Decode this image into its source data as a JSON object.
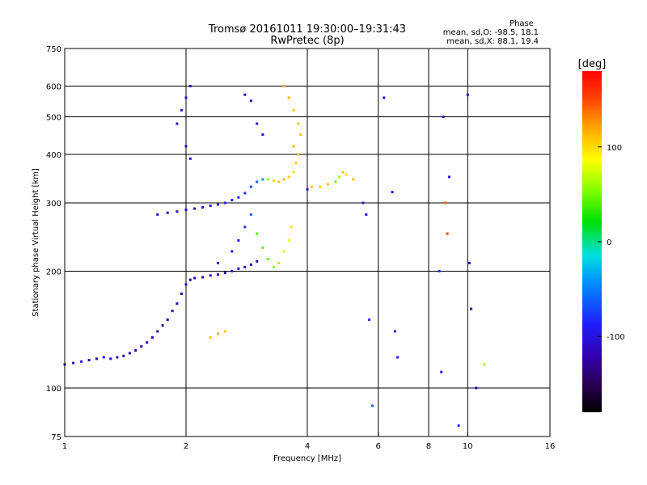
{
  "chart_data": {
    "type": "scatter",
    "title": "Tromsø 20161011 19:30:00–19:31:43",
    "subtitle": "RwPretec (8p)",
    "xlabel": "Frequency [MHz]",
    "ylabel": "Stationary phase Virtual Height [km]",
    "x_scale": "log2",
    "y_scale": "log",
    "xlim": [
      1,
      16
    ],
    "ylim": [
      75,
      750
    ],
    "x_ticks": [
      1,
      2,
      4,
      6,
      8,
      10,
      16
    ],
    "x_tick_labels": [
      "1",
      "2",
      "4",
      "6",
      "8",
      "10",
      "16"
    ],
    "y_ticks": [
      75,
      100,
      200,
      300,
      400,
      500,
      600,
      750
    ],
    "y_tick_labels": [
      "75",
      "100",
      "200",
      "300",
      "400",
      "500",
      "600",
      "750"
    ],
    "x_gridlines": [
      2,
      4,
      6,
      8,
      10
    ],
    "y_gridlines": [
      100,
      200,
      300,
      400,
      500,
      600
    ],
    "stats": {
      "heading": "Phase",
      "line_o": "mean, sd,O: -98.5, 18.1",
      "line_x": "mean, sd,X:  88.1, 19.4"
    },
    "colorbar": {
      "label": "[deg]",
      "range": [
        -180,
        180
      ],
      "ticks": [
        100,
        0,
        -100
      ],
      "tick_labels": [
        "100",
        "0",
        "-100"
      ]
    },
    "series": [
      {
        "points": [
          [
            1.0,
            115,
            -110
          ],
          [
            1.05,
            116,
            -110
          ],
          [
            1.1,
            117,
            -112
          ],
          [
            1.15,
            118,
            -105
          ],
          [
            1.2,
            119,
            -110
          ],
          [
            1.25,
            120,
            -108
          ],
          [
            1.3,
            119,
            -115
          ],
          [
            1.35,
            120,
            -112
          ],
          [
            1.4,
            121,
            -118
          ],
          [
            1.45,
            123,
            -115
          ],
          [
            1.5,
            125,
            -120
          ],
          [
            1.55,
            128,
            -118
          ],
          [
            1.6,
            131,
            -122
          ],
          [
            1.65,
            135,
            -120
          ],
          [
            1.7,
            140,
            -125
          ],
          [
            1.75,
            145,
            -120
          ],
          [
            1.8,
            150,
            -118
          ],
          [
            1.85,
            158,
            -122
          ],
          [
            1.9,
            165,
            -120
          ],
          [
            1.95,
            175,
            -125
          ],
          [
            2.0,
            185,
            -120
          ],
          [
            2.05,
            190,
            -128
          ],
          [
            2.1,
            192,
            -122
          ],
          [
            2.2,
            193,
            -120
          ],
          [
            2.3,
            195,
            -124
          ],
          [
            2.4,
            196,
            -118
          ],
          [
            2.5,
            198,
            -122
          ],
          [
            2.6,
            200,
            -120
          ],
          [
            2.7,
            203,
            -118
          ],
          [
            2.8,
            205,
            -120
          ],
          [
            2.9,
            208,
            -115
          ],
          [
            3.0,
            212,
            -110
          ]
        ]
      },
      {
        "points": [
          [
            1.7,
            280,
            -110
          ],
          [
            1.8,
            283,
            -112
          ],
          [
            1.9,
            285,
            -115
          ],
          [
            2.0,
            288,
            -110
          ],
          [
            2.1,
            290,
            -108
          ],
          [
            2.2,
            292,
            -105
          ],
          [
            2.3,
            295,
            -100
          ],
          [
            2.4,
            297,
            -98
          ],
          [
            2.5,
            300,
            -95
          ],
          [
            2.6,
            305,
            -90
          ],
          [
            2.7,
            310,
            -85
          ],
          [
            2.8,
            318,
            -80
          ],
          [
            2.9,
            330,
            -70
          ],
          [
            3.0,
            340,
            -60
          ],
          [
            3.1,
            345,
            -40
          ],
          [
            3.2,
            345,
            60
          ],
          [
            3.3,
            342,
            100
          ],
          [
            3.4,
            340,
            110
          ],
          [
            3.5,
            345,
            115
          ],
          [
            3.6,
            350,
            110
          ],
          [
            3.7,
            360,
            100
          ],
          [
            3.75,
            380,
            105
          ],
          [
            3.8,
            400,
            110
          ]
        ]
      },
      {
        "points": [
          [
            1.9,
            480,
            -115
          ],
          [
            1.95,
            520,
            -110
          ],
          [
            2.0,
            560,
            -112
          ],
          [
            2.05,
            600,
            -110
          ],
          [
            2.0,
            420,
            -120
          ],
          [
            2.05,
            390,
            -118
          ],
          [
            2.8,
            570,
            -110
          ],
          [
            2.9,
            550,
            -105
          ],
          [
            3.0,
            480,
            -100
          ],
          [
            3.1,
            450,
            -100
          ],
          [
            3.5,
            600,
            120
          ],
          [
            3.6,
            560,
            115
          ],
          [
            3.7,
            520,
            110
          ],
          [
            3.8,
            480,
            108
          ],
          [
            3.85,
            450,
            110
          ],
          [
            3.7,
            420,
            112
          ]
        ]
      },
      {
        "points": [
          [
            2.4,
            210,
            -110
          ],
          [
            2.6,
            225,
            -100
          ],
          [
            2.7,
            240,
            -90
          ],
          [
            2.8,
            260,
            -80
          ],
          [
            2.9,
            280,
            -60
          ],
          [
            3.0,
            250,
            40
          ],
          [
            3.1,
            230,
            45
          ],
          [
            3.2,
            215,
            50
          ],
          [
            3.3,
            205,
            55
          ],
          [
            3.4,
            210,
            60
          ],
          [
            3.5,
            225,
            80
          ],
          [
            3.6,
            240,
            90
          ],
          [
            3.65,
            260,
            95
          ],
          [
            2.3,
            135,
            110
          ],
          [
            2.4,
            138,
            115
          ],
          [
            2.5,
            140,
            110
          ]
        ]
      },
      {
        "points": [
          [
            4.0,
            325,
            -110
          ],
          [
            4.1,
            330,
            110
          ],
          [
            4.3,
            330,
            105
          ],
          [
            4.5,
            335,
            110
          ],
          [
            4.7,
            340,
            50
          ],
          [
            4.8,
            350,
            60
          ],
          [
            4.9,
            360,
            110
          ],
          [
            5.0,
            355,
            100
          ],
          [
            5.2,
            345,
            110
          ],
          [
            5.5,
            300,
            -100
          ],
          [
            5.6,
            280,
            -110
          ],
          [
            5.7,
            150,
            -80
          ],
          [
            5.8,
            90,
            -60
          ],
          [
            6.2,
            560,
            -100
          ],
          [
            6.5,
            320,
            -90
          ],
          [
            6.6,
            140,
            -95
          ],
          [
            6.7,
            120,
            -90
          ],
          [
            8.5,
            200,
            -80
          ],
          [
            8.6,
            110,
            -90
          ],
          [
            8.7,
            500,
            -110
          ],
          [
            8.8,
            300,
            140
          ],
          [
            8.9,
            250,
            150
          ],
          [
            9.0,
            350,
            -100
          ],
          [
            9.5,
            80,
            -80
          ],
          [
            10.0,
            570,
            -120
          ],
          [
            10.1,
            210,
            -110
          ],
          [
            10.2,
            160,
            -120
          ],
          [
            10.5,
            100,
            -120
          ],
          [
            11.0,
            115,
            60
          ]
        ]
      }
    ]
  }
}
